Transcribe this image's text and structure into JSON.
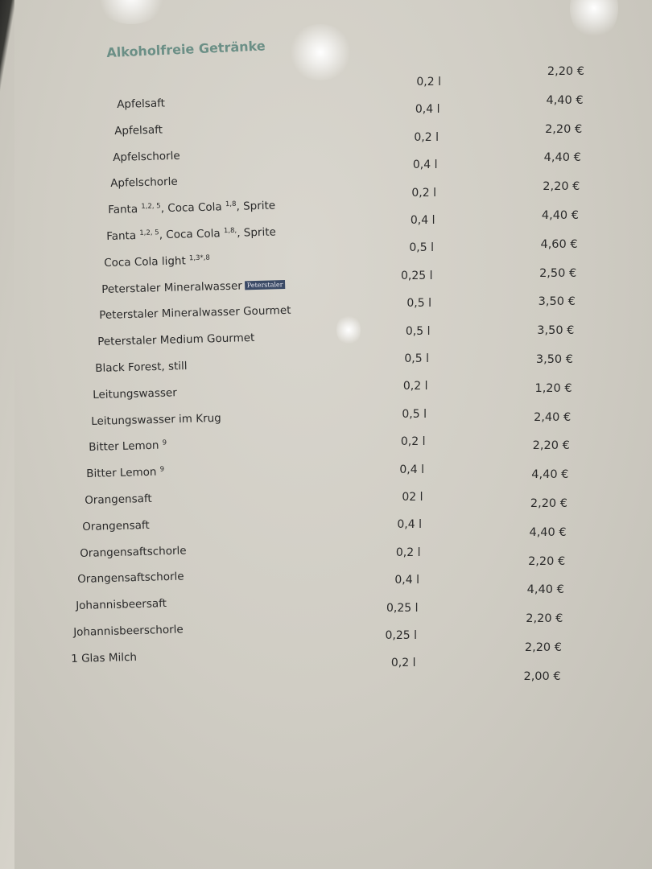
{
  "menu": {
    "title": "Alkoholfreie Getränke",
    "brand_badge": "Peterstaler",
    "items": [
      {
        "name": "Apfelsaft",
        "sup": "",
        "suffix": ""
      },
      {
        "name": "Apfelsaft",
        "sup": "",
        "suffix": ""
      },
      {
        "name": "Apfelschorle",
        "sup": "",
        "suffix": ""
      },
      {
        "name": "Apfelschorle",
        "sup": "",
        "suffix": ""
      },
      {
        "name": "Fanta",
        "sup": "1,2, 5",
        "suffix": ", Coca Cola",
        "sup2": "1,8",
        "suffix2": ", Sprite"
      },
      {
        "name": "Fanta",
        "sup": "1,2, 5",
        "suffix": ", Coca Cola",
        "sup2": "1,8,",
        "suffix2": ", Sprite"
      },
      {
        "name": "Coca Cola light",
        "sup": "1,3*,8",
        "suffix": ""
      },
      {
        "name": "Peterstaler  Mineralwasser",
        "sup": "",
        "suffix": "",
        "badge": true
      },
      {
        "name": "Peterstaler  Mineralwasser Gourmet",
        "sup": "",
        "suffix": ""
      },
      {
        "name": "Peterstaler Medium Gourmet",
        "sup": "",
        "suffix": ""
      },
      {
        "name": "Black Forest, still",
        "sup": "",
        "suffix": ""
      },
      {
        "name": "Leitungswasser",
        "sup": "",
        "suffix": ""
      },
      {
        "name": "Leitungswasser im Krug",
        "sup": "",
        "suffix": ""
      },
      {
        "name": "Bitter Lemon",
        "sup": "9",
        "suffix": ""
      },
      {
        "name": "Bitter Lemon",
        "sup": "9",
        "suffix": ""
      },
      {
        "name": "Orangensaft",
        "sup": "",
        "suffix": ""
      },
      {
        "name": "Orangensaft",
        "sup": "",
        "suffix": ""
      },
      {
        "name": "Orangensaftschorle",
        "sup": "",
        "suffix": ""
      },
      {
        "name": "Orangensaftschorle",
        "sup": "",
        "suffix": ""
      },
      {
        "name": "Johannisbeersaft",
        "sup": "",
        "suffix": ""
      },
      {
        "name": "Johannisbeerschorle",
        "sup": "",
        "suffix": ""
      },
      {
        "name": "1 Glas Milch",
        "sup": "",
        "suffix": ""
      }
    ],
    "volumes": [
      "0,2 l",
      "0,4 l",
      "0,2 l",
      "0,4 l",
      "0,2 l",
      "0,4 l",
      "0,5 l",
      "0,25 l",
      "0,5 l",
      "0,5 l",
      "0,5 l",
      "0,2 l",
      "0,5 l",
      "0,2 l",
      "0,4 l",
      "02 l",
      "0,4 l",
      "0,2 l",
      "0,4 l",
      "0,25 l",
      "0,25 l",
      "0,2 l"
    ],
    "prices": [
      "2,20 €",
      "4,40 €",
      "2,20 €",
      "4,40 €",
      "2,20 €",
      "4,40 €",
      "4,60 €",
      "2,50 €",
      "3,50 €",
      "3,50 €",
      "3,50 €",
      "1,20 €",
      "2,40 €",
      "2,20 €",
      "4,40 €",
      "2,20 €",
      "4,40 €",
      "2,20 €",
      "4,40 €",
      "2,20 €",
      "2,20 €",
      "2,00 €"
    ]
  }
}
